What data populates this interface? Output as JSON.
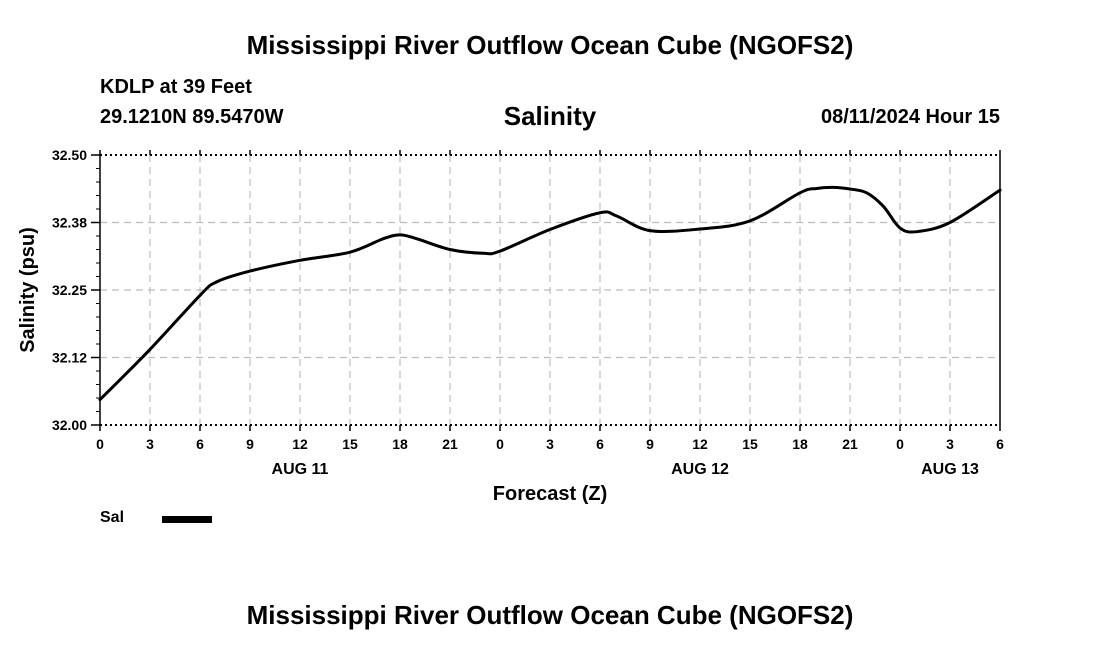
{
  "header": {
    "title": "Mississippi River Outflow Ocean Cube (NGOFS2)",
    "station": "KDLP at 39 Feet",
    "coordinates": "29.1210N  89.5470W",
    "variable": "Salinity",
    "timestamp": "08/11/2024 Hour 15"
  },
  "footer": {
    "title": "Mississippi River Outflow Ocean Cube (NGOFS2)"
  },
  "legend": {
    "label": "Sal",
    "color": "#000000"
  },
  "chart_data": {
    "type": "line",
    "title": "Salinity",
    "xlabel": "Forecast (Z)",
    "ylabel": "Salinity (psu)",
    "xlim": [
      0,
      54
    ],
    "ylim": [
      32.0,
      32.5
    ],
    "grid": true,
    "x_tick_labels": [
      "0",
      "3",
      "6",
      "9",
      "12",
      "15",
      "18",
      "21",
      "0",
      "3",
      "6",
      "9",
      "12",
      "15",
      "18",
      "21",
      "0",
      "3",
      "6"
    ],
    "date_labels": [
      {
        "label": "AUG 11",
        "x": 12
      },
      {
        "label": "AUG 12",
        "x": 36
      },
      {
        "label": "AUG 13",
        "x": 51
      }
    ],
    "y_ticks": [
      {
        "value": 32.0,
        "label": "32.00"
      },
      {
        "value": 32.125,
        "label": "32.12"
      },
      {
        "value": 32.25,
        "label": "32.25"
      },
      {
        "value": 32.375,
        "label": "32.38"
      },
      {
        "value": 32.5,
        "label": "32.50"
      }
    ],
    "series": [
      {
        "name": "Sal",
        "x": [
          0,
          3,
          6,
          7,
          9,
          12,
          15,
          17,
          18,
          19,
          21,
          23,
          24,
          27,
          30,
          31,
          33,
          36,
          39,
          42,
          43,
          44,
          45,
          46,
          47,
          48,
          49,
          51,
          54
        ],
        "values": [
          32.047,
          32.14,
          32.24,
          32.265,
          32.285,
          32.305,
          32.32,
          32.345,
          32.352,
          32.345,
          32.325,
          32.318,
          32.322,
          32.362,
          32.393,
          32.387,
          32.36,
          32.363,
          32.378,
          32.43,
          32.438,
          32.44,
          32.437,
          32.43,
          32.405,
          32.365,
          32.358,
          32.375,
          32.435
        ]
      }
    ]
  }
}
